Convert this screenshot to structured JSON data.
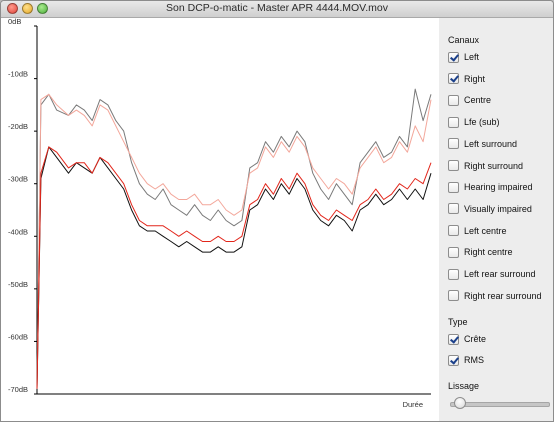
{
  "window": {
    "title": "Son DCP-o-matic  - Master APR 4444.MOV.mov"
  },
  "chart_data": {
    "type": "line",
    "xlabel": "Durée",
    "ylabel": "",
    "ylim": [
      -70,
      0
    ],
    "y_ticks": [
      0,
      -10,
      -20,
      -30,
      -40,
      -50,
      -60,
      -70
    ],
    "y_tick_labels": [
      "0dB",
      "-10dB",
      "-20dB",
      "-30dB",
      "-40dB",
      "-50dB",
      "-60dB",
      "-70dB"
    ],
    "x": [
      0,
      0.01,
      0.03,
      0.05,
      0.08,
      0.1,
      0.12,
      0.14,
      0.16,
      0.18,
      0.2,
      0.22,
      0.24,
      0.26,
      0.28,
      0.3,
      0.32,
      0.34,
      0.36,
      0.38,
      0.4,
      0.42,
      0.44,
      0.46,
      0.48,
      0.5,
      0.52,
      0.54,
      0.56,
      0.58,
      0.6,
      0.62,
      0.64,
      0.66,
      0.68,
      0.7,
      0.72,
      0.74,
      0.76,
      0.78,
      0.8,
      0.82,
      0.84,
      0.86,
      0.88,
      0.9,
      0.92,
      0.94,
      0.96,
      0.98,
      1.0
    ],
    "series": [
      {
        "kind": "peak-left",
        "color": "#7a7a7a",
        "values": [
          -69,
          -15,
          -13,
          -16,
          -17,
          -15,
          -16,
          -18,
          -14,
          -15,
          -18,
          -20,
          -26,
          -30,
          -32,
          -33,
          -31,
          -34,
          -35,
          -36,
          -34,
          -36,
          -37,
          -35,
          -37,
          -38,
          -37,
          -27,
          -26,
          -22,
          -24,
          -21,
          -23,
          -20,
          -22,
          -28,
          -31,
          -33,
          -30,
          -32,
          -34,
          -26,
          -24,
          -22,
          -25,
          -24,
          -21,
          -23,
          -12,
          -18,
          -13
        ]
      },
      {
        "kind": "peak-right",
        "color": "#f3a79b",
        "values": [
          -69,
          -14,
          -13,
          -15,
          -17,
          -16,
          -17,
          -19,
          -15,
          -16,
          -19,
          -22,
          -25,
          -28,
          -30,
          -31,
          -30,
          -32,
          -33,
          -33,
          -32,
          -34,
          -34,
          -33,
          -35,
          -36,
          -35,
          -28,
          -27,
          -23,
          -25,
          -22,
          -24,
          -21,
          -23,
          -27,
          -29,
          -31,
          -29,
          -30,
          -32,
          -27,
          -25,
          -23,
          -26,
          -25,
          -22,
          -24,
          -19,
          -22,
          -14
        ]
      },
      {
        "kind": "rms-left",
        "color": "#111111",
        "values": [
          -69,
          -29,
          -23,
          -25,
          -28,
          -26,
          -27,
          -28,
          -25,
          -27,
          -29,
          -31,
          -35,
          -38,
          -39,
          -39,
          -40,
          -41,
          -42,
          -41,
          -42,
          -43,
          -43,
          -42,
          -43,
          -43,
          -42,
          -35,
          -34,
          -31,
          -33,
          -30,
          -32,
          -29,
          -31,
          -35,
          -37,
          -38,
          -36,
          -37,
          -39,
          -35,
          -34,
          -32,
          -34,
          -33,
          -31,
          -33,
          -31,
          -33,
          -28
        ]
      },
      {
        "kind": "rms-right",
        "color": "#e2261b",
        "values": [
          -69,
          -28,
          -23,
          -24,
          -27,
          -26,
          -26,
          -28,
          -25,
          -26,
          -28,
          -30,
          -34,
          -37,
          -38,
          -38,
          -38,
          -39,
          -40,
          -39,
          -40,
          -41,
          -41,
          -40,
          -41,
          -41,
          -40,
          -34,
          -33,
          -30,
          -32,
          -29,
          -31,
          -28,
          -30,
          -34,
          -36,
          -37,
          -35,
          -36,
          -37,
          -34,
          -33,
          -31,
          -33,
          -32,
          -30,
          -31,
          -29,
          -30,
          -26
        ]
      }
    ]
  },
  "side": {
    "channels_title": "Canaux",
    "channels": [
      {
        "label": "Left",
        "checked": true
      },
      {
        "label": "Right",
        "checked": true
      },
      {
        "label": "Centre",
        "checked": false
      },
      {
        "label": "Lfe (sub)",
        "checked": false
      },
      {
        "label": "Left surround",
        "checked": false
      },
      {
        "label": "Right surround",
        "checked": false
      },
      {
        "label": "Hearing impaired",
        "checked": false
      },
      {
        "label": "Visually impaired",
        "checked": false
      },
      {
        "label": "Left centre",
        "checked": false
      },
      {
        "label": "Right centre",
        "checked": false
      },
      {
        "label": "Left rear surround",
        "checked": false
      },
      {
        "label": "Right rear surround",
        "checked": false
      }
    ],
    "type_title": "Type",
    "types": [
      {
        "label": "Crête",
        "checked": true
      },
      {
        "label": "RMS",
        "checked": true
      }
    ],
    "smoothing_title": "Lissage",
    "smoothing_value": 0.1
  }
}
